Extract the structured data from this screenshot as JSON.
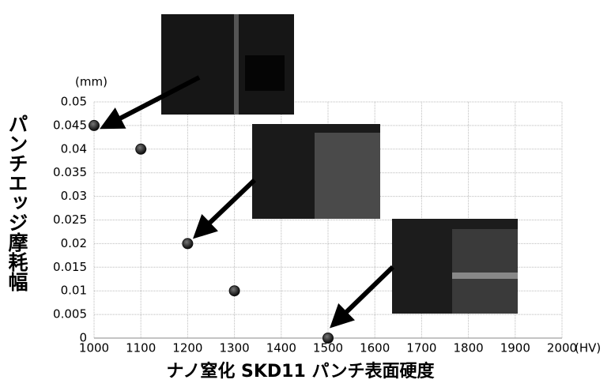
{
  "chart_data": {
    "type": "scatter",
    "y_label": "パンチエッジ摩耗幅",
    "y_unit": "(mm)",
    "x_unit": "(HV)",
    "x_label": "ナノ窒化 SKD11 パンチ表面硬度",
    "x": [
      1000,
      1100,
      1200,
      1300,
      1500
    ],
    "values": [
      0.045,
      0.04,
      0.02,
      0.01,
      0
    ],
    "color": "#111111",
    "xlim": [
      1000,
      2000
    ],
    "xticks": [
      1000,
      1100,
      1200,
      1300,
      1400,
      1500,
      1600,
      1700,
      1800,
      1900,
      2000
    ],
    "ylim": [
      0,
      0.05
    ],
    "yticks": [
      0,
      0.005,
      0.01,
      0.015,
      0.02,
      0.025,
      0.03,
      0.035,
      0.04,
      0.045,
      0.05
    ],
    "grid": true
  }
}
